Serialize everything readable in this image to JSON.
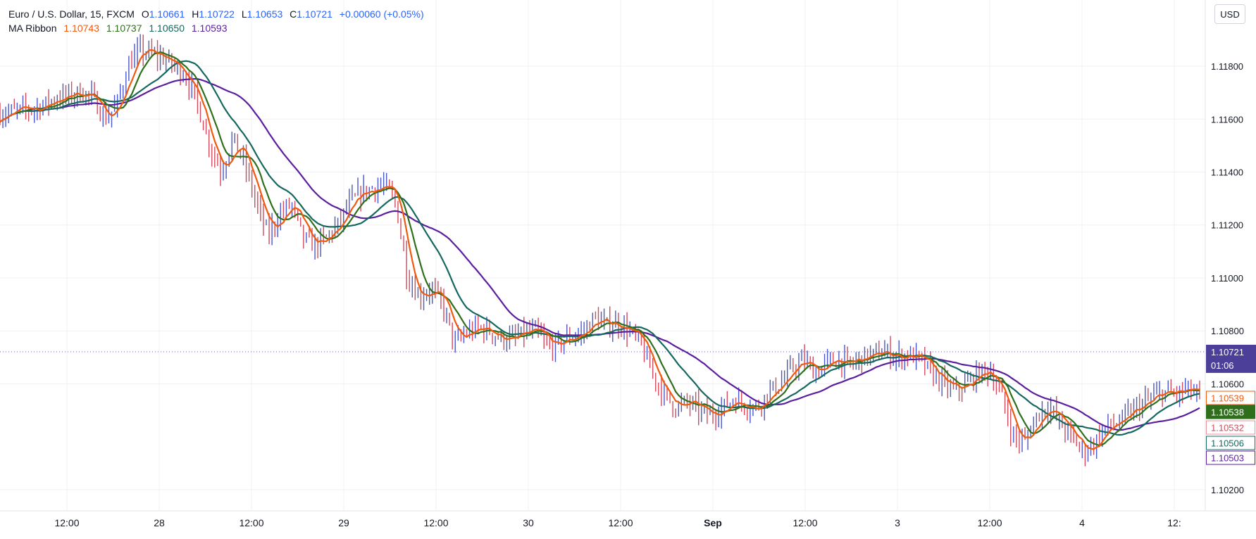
{
  "legend": {
    "symbol": "Euro / U.S. Dollar, 15, FXCM",
    "open_label": "O",
    "open": "1.10661",
    "high_label": "H",
    "high": "1.10722",
    "low_label": "L",
    "low": "1.10653",
    "close_label": "C",
    "close": "1.10721",
    "change": "+0.00060 (+0.05%)",
    "ma_name": "MA Ribbon",
    "ma_values": [
      "1.10743",
      "1.10737",
      "1.10650",
      "1.10593"
    ]
  },
  "currency_button": "USD",
  "colors": {
    "ma1": "#f05a0e",
    "ma2": "#2f6f1c",
    "ma3": "#14685e",
    "ma4": "#5b1e9e",
    "bar_up": "#4a57c8",
    "bar_down": "#d04a5e",
    "grid": "#eef0f3",
    "price_line": "#5b5bd6",
    "countdown_bg": "#4b3f9a"
  },
  "chart_data": {
    "type": "line",
    "title": "Euro / U.S. Dollar, 15, FXCM",
    "ylim": [
      1.1012,
      1.1205
    ],
    "y_ticks": [
      "1.11800",
      "1.11600",
      "1.11400",
      "1.11200",
      "1.11000",
      "1.10800",
      "1.10600",
      "1.10200"
    ],
    "y_tick_values": [
      1.118,
      1.116,
      1.114,
      1.112,
      1.11,
      1.108,
      1.106,
      1.102
    ],
    "x_ticks": [
      "12:00",
      "28",
      "12:00",
      "29",
      "12:00",
      "30",
      "12:00",
      "Sep",
      "12:00",
      "3",
      "12:00",
      "4",
      "12:"
    ],
    "x_tick_bold": [
      false,
      false,
      false,
      false,
      false,
      false,
      false,
      true,
      false,
      false,
      false,
      false,
      false
    ],
    "current_price": {
      "value": 1.10721,
      "label": "1.10721",
      "countdown": "01:06"
    },
    "price_labels": [
      {
        "value": 1.10539,
        "label": "1.10539",
        "series": "ma1"
      },
      {
        "value": 1.10538,
        "label": "1.10538",
        "series": "ma2"
      },
      {
        "value": 1.10532,
        "label": "1.10532",
        "series": "bar_down"
      },
      {
        "value": 1.10506,
        "label": "1.10506",
        "series": "ma3"
      },
      {
        "value": 1.10503,
        "label": "1.10503",
        "series": "ma4"
      }
    ],
    "price_anchors": [
      [
        0,
        1.1162
      ],
      [
        3,
        1.1164
      ],
      [
        5,
        1.1168
      ],
      [
        7,
        1.117
      ],
      [
        8,
        1.1168
      ],
      [
        9,
        1.116
      ],
      [
        10,
        1.1165
      ],
      [
        11,
        1.118
      ],
      [
        12,
        1.1186
      ],
      [
        14,
        1.1183
      ],
      [
        15,
        1.118
      ],
      [
        16,
        1.1176
      ],
      [
        17,
        1.1165
      ],
      [
        18,
        1.115
      ],
      [
        19,
        1.114
      ],
      [
        20,
        1.1153
      ],
      [
        21,
        1.1143
      ],
      [
        22,
        1.1128
      ],
      [
        23,
        1.1116
      ],
      [
        24,
        1.1124
      ],
      [
        25,
        1.1128
      ],
      [
        26,
        1.1115
      ],
      [
        27,
        1.1112
      ],
      [
        28,
        1.1115
      ],
      [
        29,
        1.112
      ],
      [
        30,
        1.1128
      ],
      [
        31,
        1.1132
      ],
      [
        32,
        1.1134
      ],
      [
        33,
        1.1135
      ],
      [
        34,
        1.1128
      ],
      [
        35,
        1.11
      ],
      [
        36,
        1.1093
      ],
      [
        37,
        1.1096
      ],
      [
        38,
        1.109
      ],
      [
        39,
        1.1075
      ],
      [
        40,
        1.1079
      ],
      [
        41,
        1.1081
      ],
      [
        42,
        1.108
      ],
      [
        43,
        1.1077
      ],
      [
        44,
        1.1077
      ],
      [
        45,
        1.1079
      ],
      [
        46,
        1.108
      ],
      [
        47,
        1.1074
      ],
      [
        48,
        1.1075
      ],
      [
        49,
        1.1078
      ],
      [
        50,
        1.1079
      ],
      [
        51,
        1.1085
      ],
      [
        52,
        1.1082
      ],
      [
        53,
        1.1083
      ],
      [
        54,
        1.108
      ],
      [
        55,
        1.1075
      ],
      [
        56,
        1.1064
      ],
      [
        57,
        1.1056
      ],
      [
        58,
        1.1051
      ],
      [
        59,
        1.1053
      ],
      [
        60,
        1.105
      ],
      [
        61,
        1.1048
      ],
      [
        62,
        1.1051
      ],
      [
        63,
        1.1054
      ],
      [
        64,
        1.1052
      ],
      [
        65,
        1.1051
      ],
      [
        66,
        1.1057
      ],
      [
        67,
        1.106
      ],
      [
        68,
        1.1066
      ],
      [
        69,
        1.1069
      ],
      [
        70,
        1.1064
      ],
      [
        71,
        1.1068
      ],
      [
        72,
        1.1069
      ],
      [
        73,
        1.1067
      ],
      [
        74,
        1.107
      ],
      [
        75,
        1.1071
      ],
      [
        76,
        1.1072
      ],
      [
        77,
        1.107
      ],
      [
        78,
        1.1071
      ],
      [
        79,
        1.1069
      ],
      [
        80,
        1.1064
      ],
      [
        81,
        1.106
      ],
      [
        82,
        1.1057
      ],
      [
        83,
        1.106
      ],
      [
        84,
        1.1064
      ],
      [
        85,
        1.1065
      ],
      [
        86,
        1.1055
      ],
      [
        87,
        1.104
      ],
      [
        88,
        1.1038
      ],
      [
        89,
        1.1048
      ],
      [
        90,
        1.1052
      ],
      [
        91,
        1.1045
      ],
      [
        92,
        1.104
      ],
      [
        93,
        1.1034
      ],
      [
        94,
        1.1038
      ],
      [
        95,
        1.1044
      ],
      [
        96,
        1.1045
      ],
      [
        97,
        1.1049
      ],
      [
        98,
        1.1052
      ],
      [
        99,
        1.1055
      ],
      [
        100,
        1.1057
      ],
      [
        101,
        1.1056
      ],
      [
        102,
        1.1058
      ],
      [
        103,
        1.1055
      ]
    ]
  }
}
